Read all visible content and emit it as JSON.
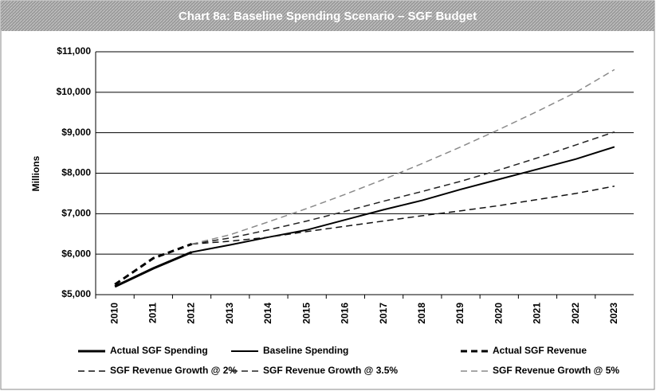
{
  "chart_data": {
    "type": "line",
    "title": "Chart 8a:  Baseline Spending Scenario – SGF Budget",
    "y_label": "Millions",
    "categories": [
      "2010",
      "2011",
      "2012",
      "2013",
      "2014",
      "2015",
      "2016",
      "2017",
      "2018",
      "2019",
      "2020",
      "2021",
      "2022",
      "2023"
    ],
    "ylim": [
      5000,
      11000
    ],
    "yticks": [
      {
        "value": 5000,
        "label": "$5,000"
      },
      {
        "value": 6000,
        "label": "$6,000"
      },
      {
        "value": 7000,
        "label": "$7,000"
      },
      {
        "value": 8000,
        "label": "$8,000"
      },
      {
        "value": 9000,
        "label": "$9,000"
      },
      {
        "value": 10000,
        "label": "$10,000"
      },
      {
        "value": 11000,
        "label": "$11,000"
      }
    ],
    "grid": true,
    "series": [
      {
        "name": "Actual SGF Spending",
        "color": "#000000",
        "dash": "solid",
        "width": 3,
        "values": [
          5200,
          5650,
          6050,
          null,
          null,
          null,
          null,
          null,
          null,
          null,
          null,
          null,
          null,
          null
        ]
      },
      {
        "name": "Baseline Spending",
        "color": "#000000",
        "dash": "solid",
        "width": 2,
        "values": [
          null,
          null,
          6050,
          6230,
          6420,
          6600,
          6850,
          7100,
          7330,
          7600,
          7850,
          8100,
          8350,
          8650
        ]
      },
      {
        "name": "Actual SGF Revenue",
        "color": "#000000",
        "dash": "dashed",
        "width": 3,
        "values": [
          5250,
          5900,
          6250,
          null,
          null,
          null,
          null,
          null,
          null,
          null,
          null,
          null,
          null,
          null
        ]
      },
      {
        "name": "SGF Revenue Growth @ 2%",
        "color": "#111111",
        "dash": "dashed",
        "width": 1.5,
        "values": [
          null,
          null,
          6250,
          6320,
          6420,
          6560,
          6690,
          6820,
          6950,
          7070,
          7200,
          7350,
          7500,
          7680
        ]
      },
      {
        "name": "SGF Revenue Growth @ 3.5%",
        "color": "#222222",
        "dash": "dashed",
        "width": 1.5,
        "values": [
          null,
          null,
          6250,
          6400,
          6600,
          6820,
          7060,
          7310,
          7550,
          7800,
          8080,
          8380,
          8700,
          9020
        ]
      },
      {
        "name": "SGF Revenue Growth @ 5%",
        "color": "#8a8a8a",
        "dash": "dashed",
        "width": 1.5,
        "values": [
          null,
          null,
          6250,
          6480,
          6800,
          7130,
          7480,
          7850,
          8240,
          8650,
          9080,
          9530,
          10000,
          10560
        ]
      }
    ]
  }
}
